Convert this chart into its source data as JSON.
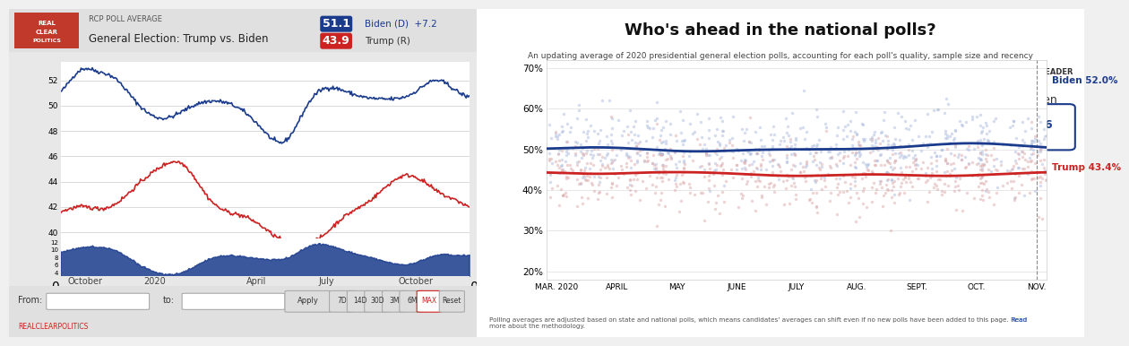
{
  "left_panel": {
    "title": "General Election: Trump vs. Biden",
    "subtitle": "RCP POLL AVERAGE",
    "biden_label": "51.1  Biden (D)  +7.2",
    "trump_label": "43.9  Trump (R)",
    "biden_color": "#1a3b8c",
    "trump_color": "#cc2222",
    "spread_color": "#1a3b8c",
    "bg_color": "#f5f5f5",
    "chart_bg": "#ffffff",
    "yticks_main": [
      40,
      42,
      44,
      46,
      48,
      50,
      52
    ],
    "yticks_spread": [
      4,
      6,
      8,
      10,
      12
    ],
    "xtick_labels": [
      "October",
      "2020",
      "April",
      "July",
      "October"
    ],
    "ylim_main": [
      39.5,
      53.5
    ],
    "ylim_spread": [
      3,
      13
    ]
  },
  "right_panel": {
    "title": "Who's ahead in the national polls?",
    "subtitle": "An updating average of 2020 presidential general election polls, accounting for each poll's quality, sample size and recency",
    "biden_line_label": "Biden 52.0%",
    "trump_line_label": "Trump 43.4%",
    "biden_color": "#2a4a9a",
    "trump_color": "#cc2222",
    "leader_label": "NOV. 1 LEADER\nBiden\n+8.6",
    "xtick_labels": [
      "MAR. 2020",
      "APRIL",
      "MAY",
      "JUNE",
      "JULY",
      "AUG.",
      "SEPT.",
      "OCT.",
      "NOV."
    ],
    "yticks": [
      20,
      30,
      40,
      50,
      60,
      70
    ],
    "ylim": [
      18,
      72
    ],
    "footer": "Polling averages are adjusted based on state and national polls, which means candidates' averages can shift even if no new polls have been added to this page. Read\nmore about the methodology.",
    "bg_color": "#ffffff"
  }
}
